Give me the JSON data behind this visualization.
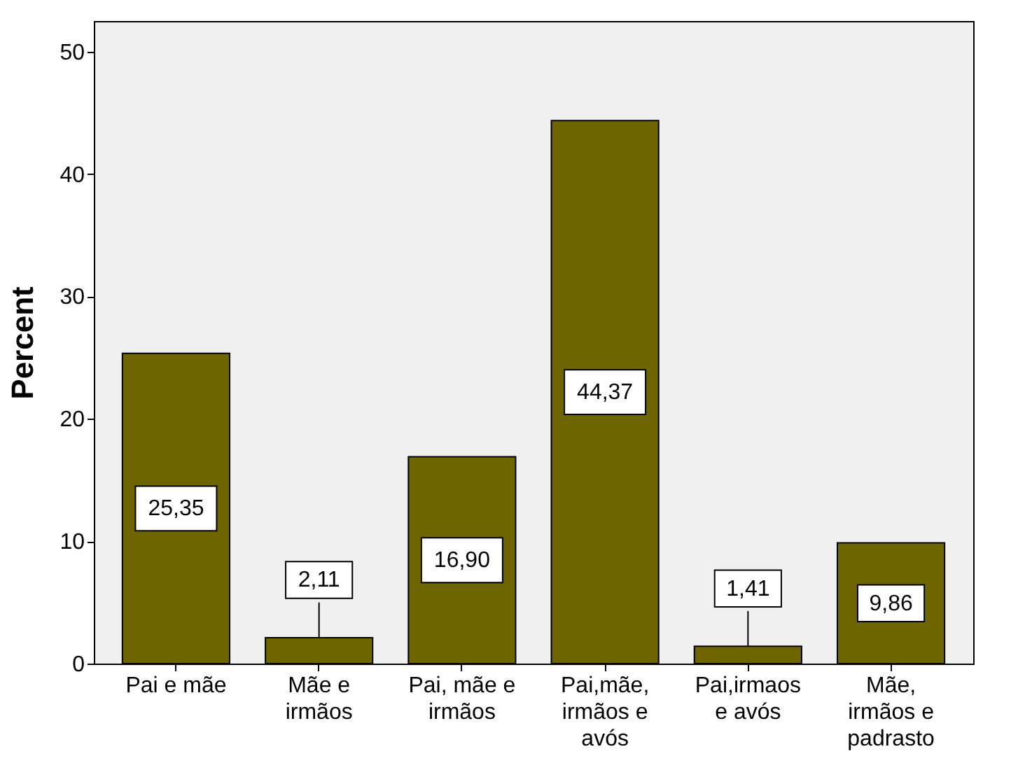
{
  "chart_data": {
    "type": "bar",
    "ylabel": "Percent",
    "categories": [
      "Pai e mãe",
      "Mãe e\nirmãos",
      "Pai, mãe e\nirmãos",
      "Pai,mãe,\nirmãos e\navós",
      "Pai,irmaos\ne avós",
      "Mãe,\nirmãos e\npadrasto"
    ],
    "values": [
      25.35,
      2.11,
      16.9,
      44.37,
      1.41,
      9.86
    ],
    "value_labels": [
      "25,35",
      "2,11",
      "16,90",
      "44,37",
      "1,41",
      "9,86"
    ],
    "color": "#6e6400",
    "ylim": [
      0,
      52.5
    ],
    "yticks": [
      0,
      10,
      20,
      30,
      40,
      50
    ],
    "grid": false
  }
}
